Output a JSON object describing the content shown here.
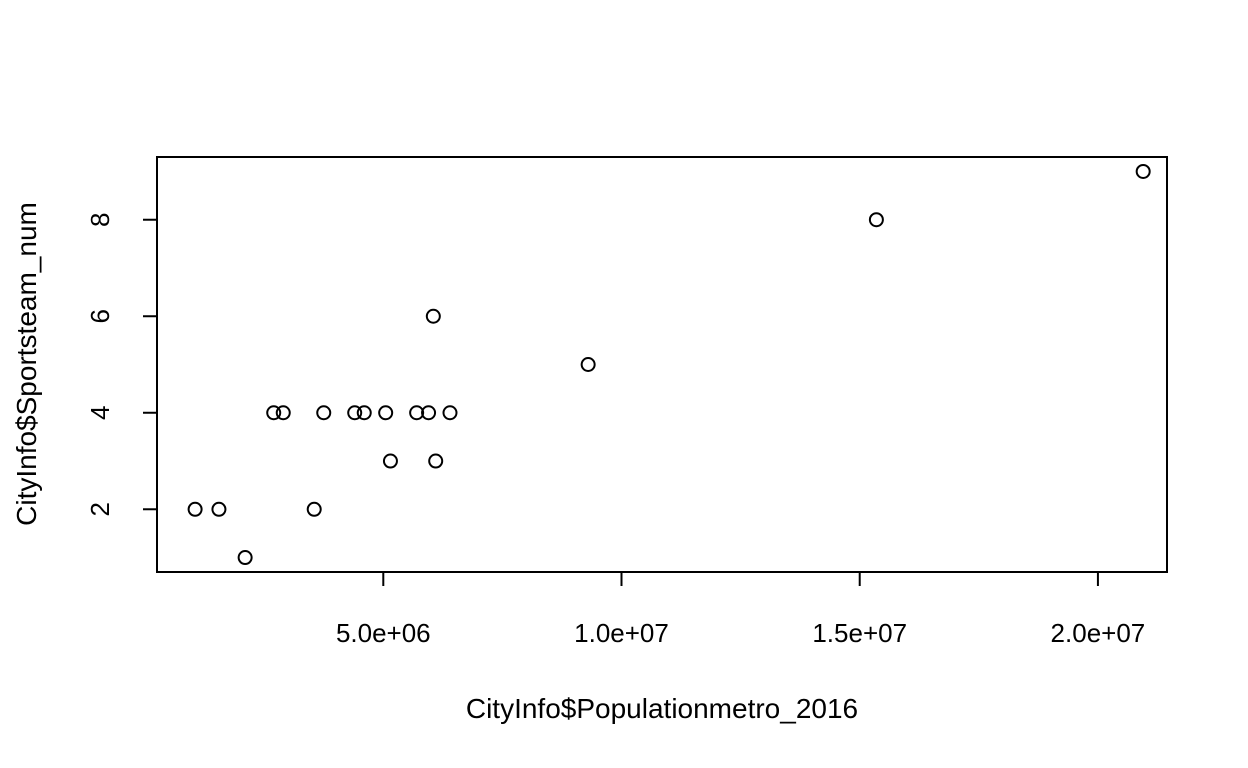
{
  "chart_data": {
    "type": "scatter",
    "title": "",
    "xlabel": "CityInfo$Populationmetro_2016",
    "ylabel": "CityInfo$Sportsteam_num",
    "xlim": [
      250000,
      21450000
    ],
    "ylim": [
      0.7,
      9.3
    ],
    "x_ticks": [
      5000000,
      10000000,
      15000000,
      20000000
    ],
    "x_tick_labels": [
      "5.0e+06",
      "1.0e+07",
      "1.5e+07",
      "2.0e+07"
    ],
    "y_ticks": [
      2,
      4,
      6,
      8
    ],
    "y_tick_labels": [
      "2",
      "4",
      "6",
      "8"
    ],
    "grid": false,
    "legend": "none",
    "marker": "open-circle",
    "points": [
      {
        "x": 1050000,
        "y": 2
      },
      {
        "x": 1550000,
        "y": 2
      },
      {
        "x": 2100000,
        "y": 1
      },
      {
        "x": 2700000,
        "y": 4
      },
      {
        "x": 2900000,
        "y": 4
      },
      {
        "x": 3550000,
        "y": 2
      },
      {
        "x": 3750000,
        "y": 4
      },
      {
        "x": 4400000,
        "y": 4
      },
      {
        "x": 4600000,
        "y": 4
      },
      {
        "x": 5050000,
        "y": 4
      },
      {
        "x": 5150000,
        "y": 3
      },
      {
        "x": 5700000,
        "y": 4
      },
      {
        "x": 5950000,
        "y": 4
      },
      {
        "x": 6050000,
        "y": 6
      },
      {
        "x": 6100000,
        "y": 3
      },
      {
        "x": 6400000,
        "y": 4
      },
      {
        "x": 9300000,
        "y": 5
      },
      {
        "x": 15350000,
        "y": 8
      },
      {
        "x": 20950000,
        "y": 9
      }
    ]
  }
}
